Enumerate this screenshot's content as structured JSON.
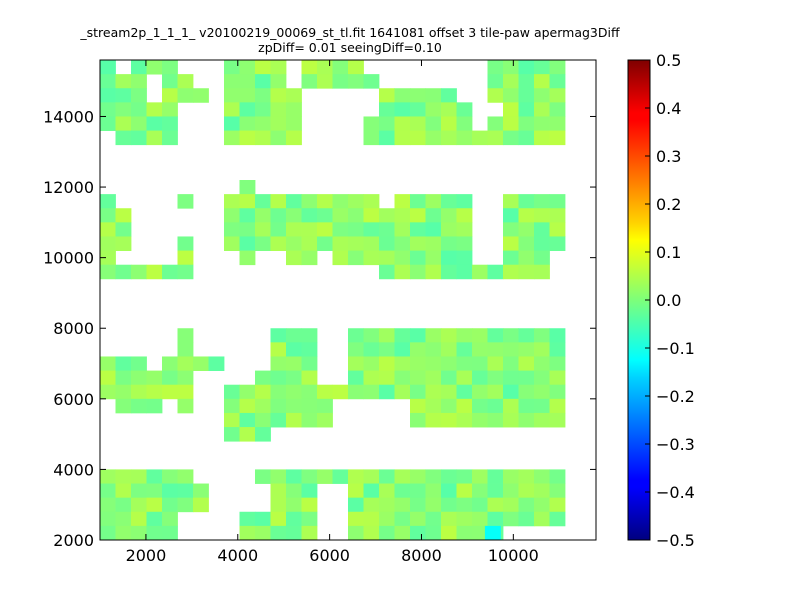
{
  "chart_data": {
    "type": "heatmap",
    "title_line1": "_stream2p_1_1_1_ v20100219_00069_st_tl.fit 1641081 offset 3 tile-paw apermag3Diff",
    "title_line2": "zpDiff= 0.01 seeingDiff=0.10",
    "xlabel": "",
    "ylabel": "",
    "xlim": [
      1000,
      11800
    ],
    "ylim": [
      2000,
      15600
    ],
    "xticks": [
      2000,
      4000,
      6000,
      8000,
      10000
    ],
    "yticks": [
      2000,
      4000,
      6000,
      8000,
      10000,
      12000,
      14000
    ],
    "colorbar": {
      "colormap": "jet",
      "range": [
        -0.5,
        0.5
      ],
      "ticks": [
        "0.5",
        "0.4",
        "0.3",
        "0.2",
        "0.1",
        "0.0",
        "−0.1",
        "−0.2",
        "−0.3",
        "−0.4",
        "−0.5"
      ]
    },
    "cell_size": [
      337.5,
      400
    ],
    "cells_note": "values approximately 0.0 to 0.05 (green); one cyan cell near -0.12",
    "rows": [
      {
        "y": 15400,
        "cols": [
          0,
          2,
          3,
          4,
          8,
          9,
          10,
          11,
          13,
          14,
          15,
          16,
          25,
          26,
          27,
          28,
          29
        ]
      },
      {
        "y": 15000,
        "cols": [
          0,
          1,
          2,
          4,
          5,
          8,
          9,
          10,
          11,
          13,
          14,
          15,
          16,
          17,
          25,
          26,
          27,
          28,
          29
        ]
      },
      {
        "y": 14600,
        "cols": [
          0,
          1,
          2,
          4,
          5,
          6,
          8,
          9,
          10,
          11,
          12,
          18,
          19,
          20,
          21,
          22,
          25,
          26,
          27,
          28,
          29
        ]
      },
      {
        "y": 14200,
        "cols": [
          0,
          1,
          2,
          3,
          4,
          8,
          9,
          10,
          11,
          12,
          18,
          19,
          20,
          21,
          22,
          23,
          26,
          27,
          28,
          29
        ]
      },
      {
        "y": 13800,
        "cols": [
          0,
          1,
          2,
          3,
          4,
          8,
          9,
          10,
          11,
          12,
          17,
          18,
          19,
          20,
          21,
          22,
          23,
          25,
          26,
          27,
          28,
          29
        ]
      },
      {
        "y": 13400,
        "cols": [
          1,
          2,
          3,
          4,
          8,
          9,
          10,
          11,
          12,
          17,
          18,
          19,
          20,
          21,
          22,
          23,
          24,
          25,
          26,
          27,
          28,
          29
        ]
      },
      {
        "y": 12000,
        "cols": [
          9
        ]
      },
      {
        "y": 11600,
        "cols": [
          0,
          5,
          8,
          9,
          10,
          11,
          12,
          13,
          14,
          15,
          16,
          17,
          19,
          20,
          21,
          22,
          23,
          26,
          27,
          28,
          29
        ]
      },
      {
        "y": 11200,
        "cols": [
          0,
          1,
          8,
          9,
          10,
          11,
          12,
          13,
          14,
          15,
          16,
          17,
          18,
          19,
          20,
          21,
          22,
          23,
          26,
          27,
          28,
          29
        ]
      },
      {
        "y": 10800,
        "cols": [
          0,
          1,
          8,
          9,
          10,
          11,
          12,
          13,
          14,
          15,
          16,
          17,
          18,
          19,
          20,
          21,
          22,
          23,
          26,
          27,
          28,
          29
        ]
      },
      {
        "y": 10400,
        "cols": [
          0,
          1,
          5,
          8,
          9,
          10,
          11,
          12,
          13,
          14,
          15,
          16,
          17,
          18,
          19,
          20,
          21,
          22,
          23,
          26,
          27,
          28,
          29
        ]
      },
      {
        "y": 10000,
        "cols": [
          0,
          5,
          9,
          12,
          13,
          15,
          16,
          17,
          18,
          19,
          20,
          21,
          22,
          23,
          26,
          27,
          28
        ]
      },
      {
        "y": 9600,
        "cols": [
          0,
          1,
          2,
          3,
          4,
          5,
          18,
          19,
          20,
          21,
          22,
          23,
          24,
          25,
          26,
          27,
          28
        ]
      },
      {
        "y": 7800,
        "cols": [
          5,
          11,
          12,
          13,
          16,
          17,
          18,
          19,
          20,
          21,
          22,
          23,
          24,
          25,
          26,
          27,
          28,
          29
        ]
      },
      {
        "y": 7400,
        "cols": [
          5,
          11,
          12,
          13,
          16,
          17,
          18,
          19,
          20,
          21,
          22,
          23,
          24,
          25,
          26,
          27,
          28,
          29
        ]
      },
      {
        "y": 7000,
        "cols": [
          0,
          1,
          2,
          4,
          5,
          6,
          7,
          11,
          12,
          13,
          16,
          17,
          18,
          19,
          20,
          21,
          22,
          23,
          24,
          25,
          26,
          27,
          28,
          29
        ]
      },
      {
        "y": 6600,
        "cols": [
          0,
          1,
          2,
          3,
          4,
          5,
          10,
          11,
          12,
          13,
          16,
          17,
          18,
          19,
          20,
          21,
          22,
          23,
          24,
          25,
          26,
          27,
          28,
          29
        ]
      },
      {
        "y": 6200,
        "cols": [
          0,
          1,
          2,
          3,
          4,
          5,
          8,
          9,
          10,
          11,
          12,
          13,
          14,
          15,
          16,
          17,
          18,
          19,
          20,
          21,
          22,
          23,
          24,
          25,
          26,
          27,
          28,
          29
        ]
      },
      {
        "y": 5800,
        "cols": [
          1,
          2,
          3,
          5,
          8,
          9,
          10,
          11,
          12,
          13,
          14,
          20,
          21,
          22,
          23,
          24,
          25,
          26,
          27,
          28,
          29
        ]
      },
      {
        "y": 5400,
        "cols": [
          8,
          9,
          10,
          11,
          12,
          13,
          14,
          20,
          21,
          22,
          23,
          24,
          25,
          26,
          27,
          28,
          29
        ]
      },
      {
        "y": 5000,
        "cols": [
          8,
          9,
          10
        ]
      },
      {
        "y": 3800,
        "cols": [
          0,
          1,
          2,
          3,
          4,
          5,
          10,
          11,
          12,
          13,
          14,
          15,
          16,
          17,
          18,
          19,
          20,
          21,
          22,
          23,
          24,
          25,
          26,
          27,
          28,
          29
        ]
      },
      {
        "y": 3400,
        "cols": [
          0,
          1,
          2,
          3,
          4,
          5,
          6,
          11,
          12,
          13,
          16,
          17,
          18,
          19,
          20,
          21,
          22,
          23,
          24,
          25,
          26,
          27,
          28,
          29
        ]
      },
      {
        "y": 3000,
        "cols": [
          0,
          1,
          2,
          3,
          4,
          5,
          6,
          11,
          12,
          13,
          16,
          17,
          18,
          19,
          20,
          21,
          22,
          23,
          24,
          25,
          26,
          27,
          28,
          29
        ]
      },
      {
        "y": 2600,
        "cols": [
          0,
          1,
          2,
          3,
          4,
          9,
          10,
          11,
          12,
          13,
          16,
          17,
          18,
          19,
          20,
          21,
          22,
          23,
          24,
          25,
          26,
          27,
          28,
          29
        ]
      },
      {
        "y": 2200,
        "cols": [
          0,
          1,
          2,
          3,
          4,
          9,
          10,
          11,
          12,
          13,
          16,
          17,
          18,
          19,
          20,
          21,
          22,
          23,
          24,
          25
        ]
      }
    ],
    "special_cells": [
      {
        "x": 9550,
        "y": 2200,
        "value": -0.12
      }
    ]
  }
}
